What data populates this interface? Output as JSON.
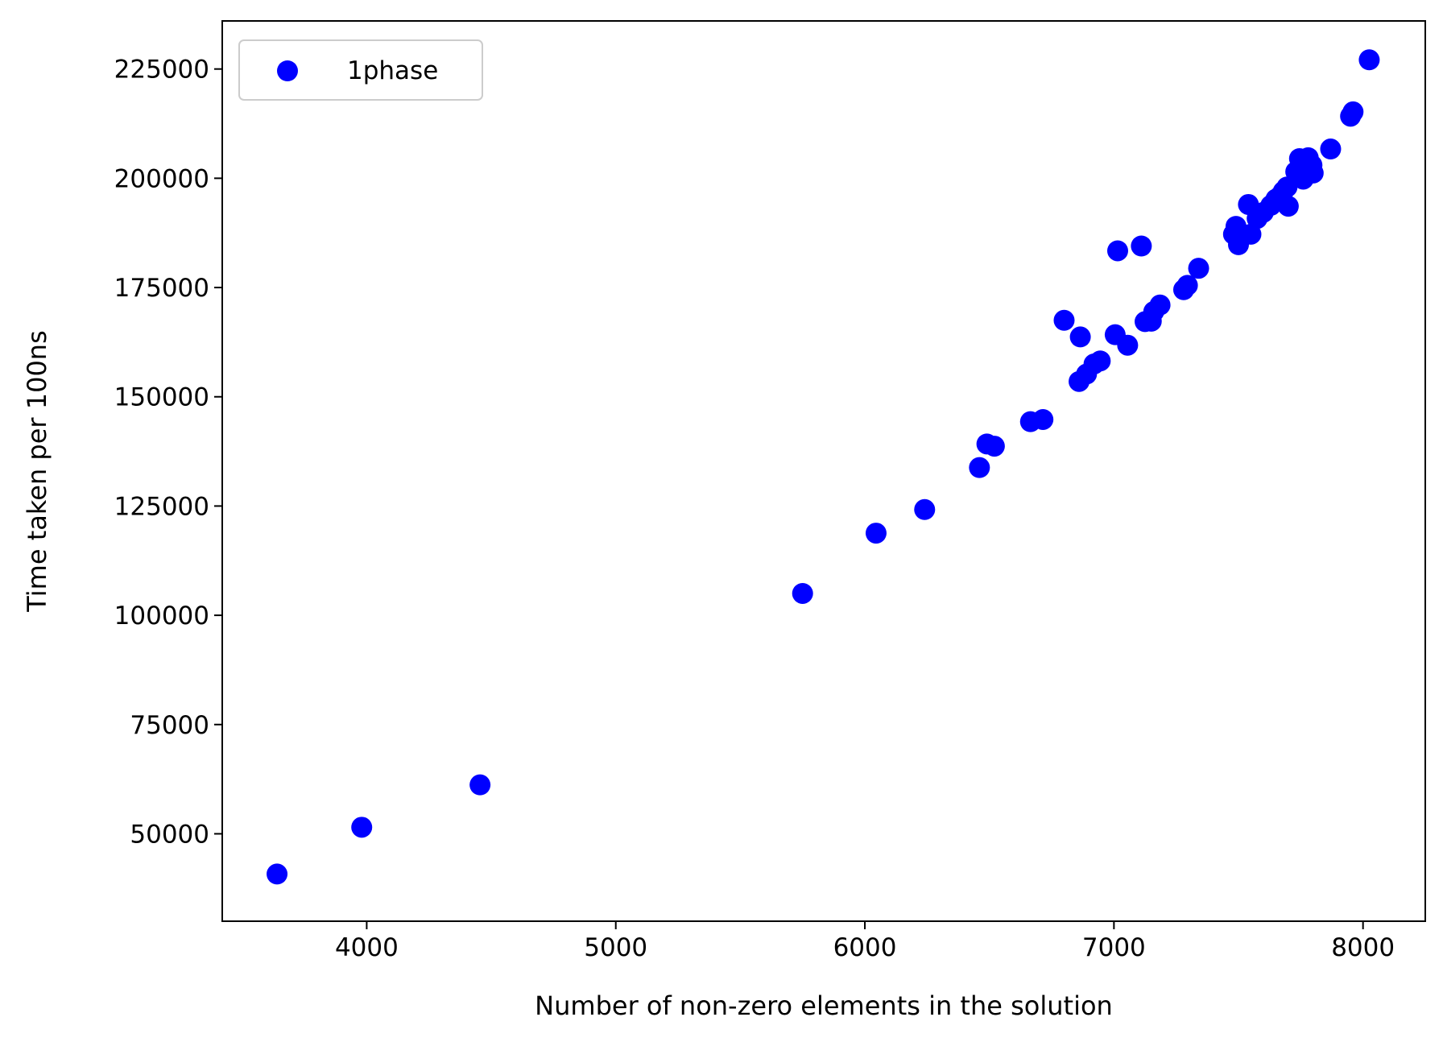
{
  "chart_data": {
    "type": "scatter",
    "xlabel": "Number of non-zero elements in the solution",
    "ylabel": "Time taken per 100ns",
    "xlim": [
      3420,
      8250
    ],
    "ylim": [
      30000,
      236000
    ],
    "xticks": [
      4000,
      5000,
      6000,
      7000,
      8000
    ],
    "yticks": [
      50000,
      75000,
      100000,
      125000,
      150000,
      175000,
      200000,
      225000
    ],
    "grid": false,
    "legend_position": "upper-left",
    "series": [
      {
        "name": "1phase",
        "color": "#0000ff",
        "points": [
          [
            3640,
            40800
          ],
          [
            3980,
            51500
          ],
          [
            4455,
            61200
          ],
          [
            5750,
            105000
          ],
          [
            6045,
            118800
          ],
          [
            6240,
            124200
          ],
          [
            6460,
            133800
          ],
          [
            6490,
            139200
          ],
          [
            6520,
            138700
          ],
          [
            6665,
            144300
          ],
          [
            6715,
            144800
          ],
          [
            6800,
            167500
          ],
          [
            6860,
            153500
          ],
          [
            6865,
            163700
          ],
          [
            6890,
            155200
          ],
          [
            6920,
            157500
          ],
          [
            6945,
            158200
          ],
          [
            7005,
            164200
          ],
          [
            7015,
            183400
          ],
          [
            7055,
            161800
          ],
          [
            7110,
            184500
          ],
          [
            7125,
            167200
          ],
          [
            7150,
            167300
          ],
          [
            7160,
            169500
          ],
          [
            7185,
            171000
          ],
          [
            7280,
            174500
          ],
          [
            7295,
            175500
          ],
          [
            7340,
            179400
          ],
          [
            7480,
            187200
          ],
          [
            7490,
            189000
          ],
          [
            7500,
            184800
          ],
          [
            7505,
            187500
          ],
          [
            7540,
            194000
          ],
          [
            7550,
            187200
          ],
          [
            7575,
            190800
          ],
          [
            7600,
            192200
          ],
          [
            7630,
            193800
          ],
          [
            7650,
            195200
          ],
          [
            7665,
            195800
          ],
          [
            7680,
            197000
          ],
          [
            7695,
            198000
          ],
          [
            7700,
            193600
          ],
          [
            7730,
            201500
          ],
          [
            7745,
            204500
          ],
          [
            7760,
            199800
          ],
          [
            7770,
            202500
          ],
          [
            7780,
            204700
          ],
          [
            7795,
            203000
          ],
          [
            7800,
            201200
          ],
          [
            7870,
            206700
          ],
          [
            7950,
            214200
          ],
          [
            7960,
            215200
          ],
          [
            8025,
            227100
          ]
        ]
      }
    ]
  }
}
